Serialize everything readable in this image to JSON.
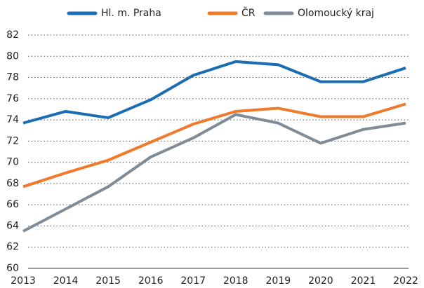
{
  "chart_data": {
    "type": "line",
    "categories": [
      "2013",
      "2014",
      "2015",
      "2016",
      "2017",
      "2018",
      "2019",
      "2020",
      "2021",
      "2022"
    ],
    "series": [
      {
        "name": "Hl. m. Praha",
        "color": "#1b6db3",
        "values": [
          73.7,
          74.8,
          74.2,
          75.9,
          78.2,
          79.5,
          79.2,
          77.6,
          77.6,
          78.9
        ]
      },
      {
        "name": "ČR",
        "color": "#f07a2a",
        "values": [
          67.7,
          69.0,
          70.2,
          71.9,
          73.6,
          74.8,
          75.1,
          74.3,
          74.3,
          75.5
        ]
      },
      {
        "name": "Olomoucký kraj",
        "color": "#7f8c97",
        "values": [
          63.5,
          65.6,
          67.7,
          70.5,
          72.3,
          74.5,
          73.7,
          71.8,
          73.1,
          73.7
        ]
      }
    ],
    "ylim": [
      60,
      82
    ],
    "yticks": [
      60,
      62,
      64,
      66,
      68,
      70,
      72,
      74,
      76,
      78,
      80,
      82
    ],
    "grid": true,
    "legend": "top"
  }
}
